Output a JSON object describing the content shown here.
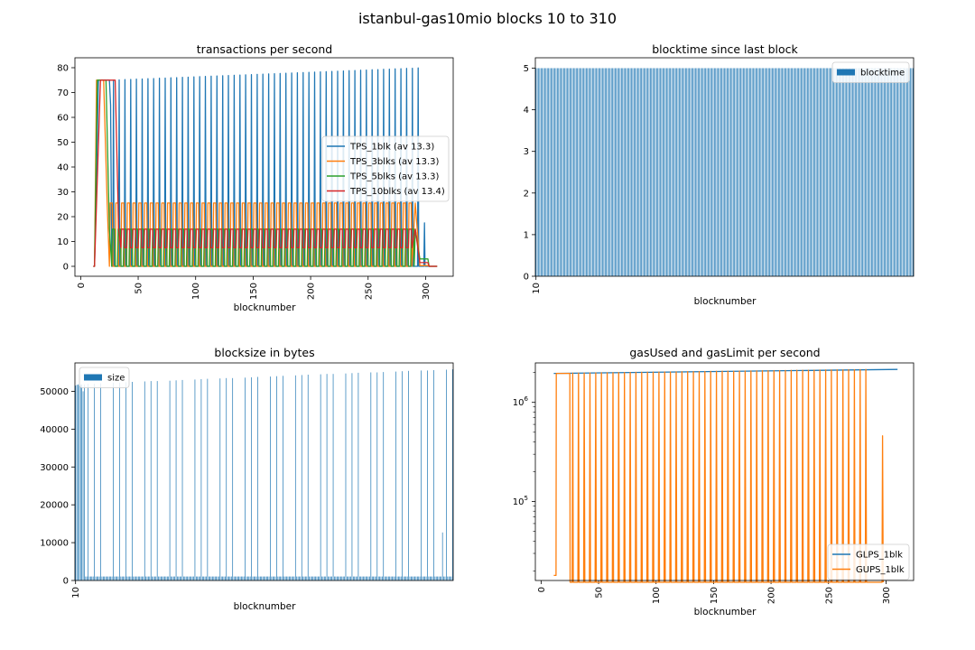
{
  "figure_title": "istanbul-gas10mio blocks 10 to 310",
  "colors": {
    "c1": "#1f77b4",
    "c2": "#ff7f0e",
    "c3": "#2ca02c",
    "c4": "#d62728"
  },
  "chart_data": [
    {
      "id": "tps",
      "type": "line",
      "title": "transactions per second",
      "xlabel": "blocknumber",
      "ylabel": "",
      "xlim": [
        -5,
        324
      ],
      "ylim": [
        -4,
        84
      ],
      "xticks": [
        0,
        50,
        100,
        150,
        200,
        250,
        300
      ],
      "yticks": [
        0,
        10,
        20,
        30,
        40,
        50,
        60,
        70,
        80
      ],
      "grid": false,
      "legend": "center-right",
      "series": [
        {
          "name": "TPS_1blk (av 13.3)",
          "color": "#1f77b4",
          "pattern": "spike",
          "start": 10,
          "end": 310,
          "rampTo": 75,
          "rampAt": 20,
          "peakStart": 75,
          "peakEnd": 80,
          "period": 5,
          "tail": 17.5,
          "tailAt": 299
        },
        {
          "name": "TPS_3blks (av 13.3)",
          "color": "#ff7f0e",
          "pattern": "step",
          "start": 10,
          "end": 310,
          "rampTo": 75,
          "rampAt": 15,
          "high": 25.5,
          "low": 0,
          "period": 5,
          "tail": 0.3
        },
        {
          "name": "TPS_5blks (av 13.3)",
          "color": "#2ca02c",
          "pattern": "step",
          "start": 10,
          "end": 310,
          "rampTo": 75,
          "rampAt": 17,
          "high": 15,
          "low": 0,
          "period": 5,
          "tail": 3
        },
        {
          "name": "TPS_10blks (av 13.4)",
          "color": "#d62728",
          "pattern": "step",
          "start": 10,
          "end": 310,
          "rampTo": 75,
          "rampAt": 25,
          "high": 15,
          "low": 7.5,
          "period": 5,
          "tail": 1.5
        }
      ]
    },
    {
      "id": "blocktime",
      "type": "bar",
      "title": "blocktime since last block",
      "xlabel": "blocknumber",
      "ylabel": "",
      "first_tick": "10",
      "ylim": [
        0,
        5.25
      ],
      "yticks": [
        0,
        1,
        2,
        3,
        4,
        5
      ],
      "legend": "top-right",
      "series": [
        {
          "name": "blocktime",
          "color": "#1f77b4",
          "value": 5,
          "count": 301
        }
      ]
    },
    {
      "id": "blocksize",
      "type": "bar",
      "title": "blocksize in bytes",
      "xlabel": "blocknumber",
      "ylabel": "",
      "first_tick": "10",
      "ylim": [
        0,
        57500
      ],
      "yticks": [
        0,
        10000,
        20000,
        30000,
        40000,
        50000
      ],
      "legend": "top-left",
      "series": [
        {
          "name": "size",
          "color": "#1f77b4",
          "base": 1050,
          "count": 301,
          "peaks": [
            [
              0,
              51500
            ],
            [
              1,
              51700
            ],
            [
              2,
              51800
            ],
            [
              3,
              51900
            ],
            [
              4,
              51800
            ],
            [
              5,
              51800
            ],
            [
              6,
              50000
            ],
            [
              7,
              51800
            ],
            [
              10,
              52000
            ],
            [
              15,
              52000
            ],
            [
              20,
              52100
            ],
            [
              30,
              52300
            ],
            [
              35,
              52300
            ],
            [
              40,
              52400
            ],
            [
              45,
              52500
            ],
            [
              55,
              52600
            ],
            [
              60,
              52700
            ],
            [
              65,
              52700
            ],
            [
              75,
              52800
            ],
            [
              80,
              52900
            ],
            [
              85,
              53000
            ],
            [
              95,
              53100
            ],
            [
              100,
              53200
            ],
            [
              105,
              53300
            ],
            [
              115,
              53400
            ],
            [
              120,
              53500
            ],
            [
              125,
              53500
            ],
            [
              135,
              53600
            ],
            [
              140,
              53700
            ],
            [
              145,
              53800
            ],
            [
              155,
              53900
            ],
            [
              160,
              54000
            ],
            [
              165,
              54100
            ],
            [
              175,
              54200
            ],
            [
              180,
              54300
            ],
            [
              185,
              54400
            ],
            [
              195,
              54500
            ],
            [
              200,
              54600
            ],
            [
              205,
              54600
            ],
            [
              215,
              54700
            ],
            [
              220,
              54800
            ],
            [
              225,
              54900
            ],
            [
              235,
              55000
            ],
            [
              240,
              55000
            ],
            [
              245,
              55100
            ],
            [
              255,
              55200
            ],
            [
              260,
              55300
            ],
            [
              265,
              55400
            ],
            [
              275,
              55500
            ],
            [
              280,
              55500
            ],
            [
              285,
              55600
            ],
            [
              295,
              55700
            ],
            [
              300,
              55800
            ],
            [
              292,
              12700
            ]
          ]
        }
      ]
    },
    {
      "id": "gasps",
      "type": "line",
      "title": "gasUsed and gasLimit per second",
      "xlabel": "blocknumber",
      "ylabel": "",
      "yscale": "log",
      "xlim": [
        -5,
        324
      ],
      "ylim": [
        16000,
        2500000
      ],
      "xticks": [
        0,
        50,
        100,
        150,
        200,
        250,
        300
      ],
      "yticks": [
        100000,
        1000000
      ],
      "ytick_labels": [
        "10^5",
        "10^6"
      ],
      "legend": "bottom-right",
      "series": [
        {
          "name": "GLPS_1blk",
          "color": "#1f77b4",
          "start": 11,
          "end": 310,
          "from": 1960000,
          "to": 2150000
        },
        {
          "name": "GUPS_1blk",
          "color": "#ff7f0e",
          "start": 11,
          "end": 298,
          "low": 18000,
          "spikeStart": 1960000,
          "spikeEnd": 2150000,
          "period": 5,
          "last": 460000,
          "lastAt": 297
        }
      ]
    }
  ]
}
